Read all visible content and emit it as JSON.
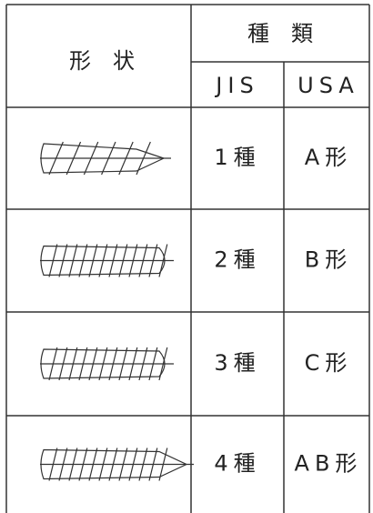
{
  "table": {
    "header": {
      "shape": "形　状",
      "kind": "種　類",
      "jis": "JIS",
      "usa": "USA"
    },
    "rows": [
      [
        "1種",
        "A形"
      ],
      [
        "2種",
        "B形"
      ],
      [
        "3種",
        "C形"
      ],
      [
        "4種",
        "AB形"
      ]
    ]
  }
}
